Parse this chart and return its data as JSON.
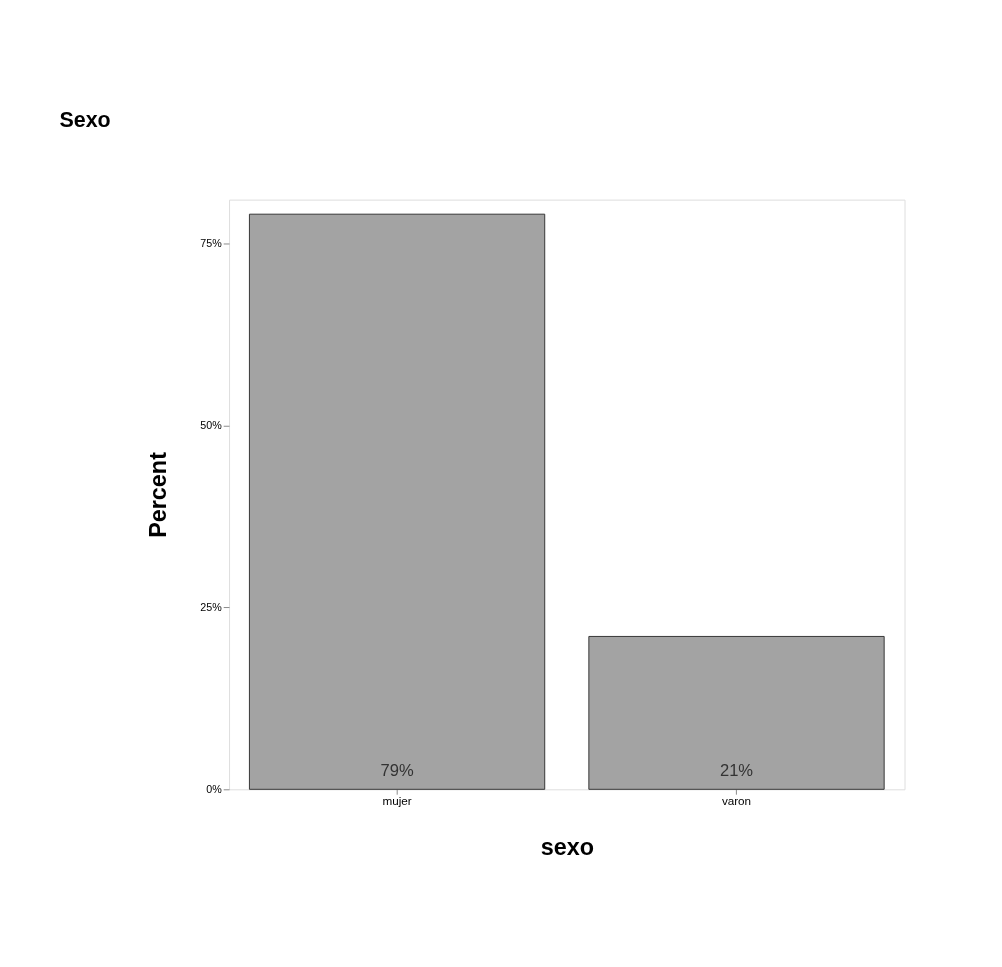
{
  "chart_data": {
    "type": "bar",
    "title": "Sexo",
    "xlabel": "sexo",
    "ylabel": "Percent",
    "categories": [
      "mujer",
      "varon"
    ],
    "values": [
      79,
      21
    ],
    "value_labels": [
      "79%",
      "21%"
    ],
    "color": "#a3a3a3",
    "ylim": [
      0,
      81
    ],
    "yticks": [
      {
        "value": 0,
        "label": "0%"
      },
      {
        "value": 25,
        "label": "25%"
      },
      {
        "value": 50,
        "label": "50%"
      },
      {
        "value": 75,
        "label": "75%"
      }
    ],
    "grid": false
  }
}
